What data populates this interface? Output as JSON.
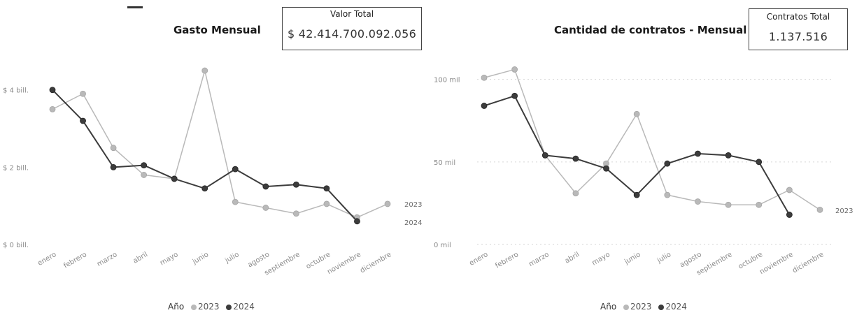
{
  "colors": {
    "s2023": "#b9b9b9",
    "s2024": "#3c3c3c"
  },
  "chart_data": [
    {
      "type": "line",
      "title": "Gasto Mensual",
      "kpi": {
        "label": "Valor Total",
        "value": "$ 42.414.700.092.056"
      },
      "categories": [
        "enero",
        "febrero",
        "marzo",
        "abril",
        "mayo",
        "junio",
        "julio",
        "agosto",
        "septiembre",
        "octubre",
        "noviembre",
        "diciembre"
      ],
      "y_ticks": [
        {
          "label": "$ 0 bill.",
          "value": 0
        },
        {
          "label": "$ 2 bill.",
          "value": 2
        },
        {
          "label": "$ 4 bill.",
          "value": 4
        }
      ],
      "ylim": [
        0,
        4.7
      ],
      "series": [
        {
          "name": "2023",
          "values": [
            3.5,
            3.9,
            2.5,
            1.8,
            1.7,
            4.5,
            1.1,
            0.95,
            0.8,
            1.05,
            0.7,
            1.05
          ]
        },
        {
          "name": "2024",
          "values": [
            4.0,
            3.2,
            2.0,
            2.05,
            1.7,
            1.45,
            1.95,
            1.5,
            1.55,
            1.45,
            0.6,
            null
          ]
        }
      ],
      "end_labels": [
        "2023",
        "2024"
      ],
      "legend": {
        "title": "Año",
        "items": [
          "2023",
          "2024"
        ]
      },
      "grid": false
    },
    {
      "type": "line",
      "title": "Cantidad de contratos - Mensual",
      "kpi": {
        "label": "Contratos Total",
        "value": "1.137.516"
      },
      "categories": [
        "enero",
        "febrero",
        "marzo",
        "abril",
        "mayo",
        "junio",
        "julio",
        "agosto",
        "septiembre",
        "octubre",
        "noviembre",
        "diciembre"
      ],
      "y_ticks": [
        {
          "label": "0 mil",
          "value": 0
        },
        {
          "label": "50 mil",
          "value": 50
        },
        {
          "label": "100 mil",
          "value": 100
        }
      ],
      "ylim": [
        0,
        110
      ],
      "series": [
        {
          "name": "2023",
          "values": [
            101,
            106,
            54,
            31,
            49,
            79,
            30,
            26,
            24,
            24,
            33,
            21
          ]
        },
        {
          "name": "2024",
          "values": [
            84,
            90,
            54,
            52,
            46,
            30,
            49,
            55,
            54,
            50,
            18,
            null
          ]
        }
      ],
      "end_labels": [
        "2023"
      ],
      "legend": {
        "title": "Año",
        "items": [
          "2023",
          "2024"
        ]
      },
      "grid": true
    }
  ]
}
